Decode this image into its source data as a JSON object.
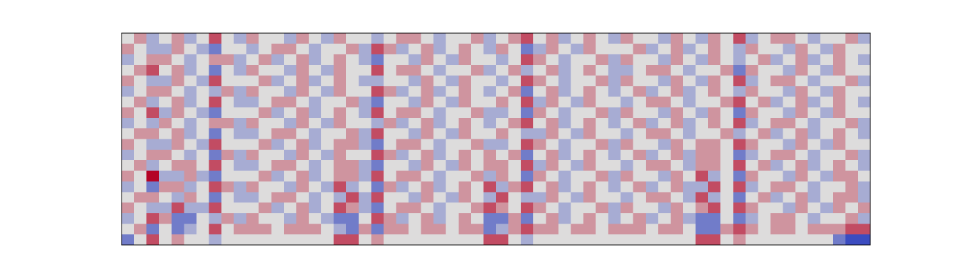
{
  "chart_data": {
    "type": "heatmap",
    "zlim": [
      -3,
      3
    ],
    "colors": [
      "#3b4cc0",
      "#dddcdc",
      "#b40426"
    ],
    "values": [
      [
        0,
        1,
        -1,
        0,
        1,
        -1,
        0,
        2,
        0,
        -1,
        1,
        0,
        0,
        -1,
        1,
        0,
        -1,
        1,
        0,
        0,
        -1,
        0,
        1,
        1,
        0,
        -1,
        0,
        0,
        1,
        -1,
        0,
        1,
        2,
        0,
        1,
        -1,
        0,
        1,
        0,
        -1,
        1,
        0,
        0,
        -1,
        1,
        0,
        -1,
        1,
        0,
        2,
        -1,
        0,
        1,
        1,
        0,
        -1,
        0,
        0,
        1,
        -1
      ],
      [
        1,
        0,
        -1,
        -1,
        1,
        0,
        -1,
        -2,
        0,
        0,
        -1,
        0,
        1,
        1,
        0,
        -1,
        0,
        0,
        1,
        -1,
        2,
        1,
        -1,
        0,
        1,
        -1,
        0,
        1,
        0,
        -1,
        1,
        0,
        -2,
        -1,
        1,
        0,
        -1,
        1,
        0,
        0,
        0,
        1,
        -1,
        0,
        1,
        -1,
        0,
        1,
        0,
        -1,
        1,
        0,
        0,
        -1,
        1,
        0,
        -1,
        1,
        0,
        0
      ],
      [
        -1,
        0,
        1,
        1,
        0,
        -1,
        0,
        1,
        1,
        -1,
        0,
        1,
        -1,
        0,
        1,
        -1,
        0,
        1,
        0,
        -1,
        -2,
        0,
        0,
        -1,
        1,
        0,
        -1,
        1,
        0,
        0,
        -1,
        0,
        2,
        1,
        0,
        -1,
        0,
        0,
        1,
        -1,
        1,
        0,
        0,
        -1,
        1,
        0,
        -1,
        1,
        0,
        -1,
        0,
        1,
        -1,
        0,
        1,
        -1,
        0,
        1,
        0,
        -1
      ],
      [
        0,
        1,
        2,
        0,
        1,
        -1,
        0,
        -2,
        0,
        -1,
        1,
        0,
        0,
        -1,
        1,
        0,
        -1,
        1,
        0,
        0,
        2,
        0,
        1,
        1,
        0,
        -1,
        0,
        0,
        1,
        -1,
        0,
        1,
        -1,
        0,
        1,
        -1,
        0,
        1,
        0,
        -1,
        -1,
        0,
        1,
        1,
        0,
        -1,
        0,
        0,
        1,
        -2,
        1,
        0,
        0,
        -1,
        1,
        0,
        -1,
        1,
        0,
        0
      ],
      [
        1,
        0,
        -1,
        -1,
        1,
        0,
        -1,
        2,
        0,
        0,
        0,
        1,
        -1,
        0,
        1,
        -1,
        0,
        1,
        0,
        -1,
        -1,
        0,
        0,
        -1,
        1,
        0,
        -1,
        1,
        0,
        0,
        -1,
        0,
        2,
        1,
        0,
        -1,
        0,
        0,
        1,
        -1,
        1,
        0,
        0,
        -1,
        1,
        0,
        -1,
        1,
        0,
        2,
        -1,
        0,
        1,
        1,
        0,
        -1,
        0,
        0,
        1,
        -1
      ],
      [
        -1,
        0,
        1,
        1,
        0,
        -1,
        0,
        -1,
        1,
        -1,
        1,
        0,
        0,
        -1,
        1,
        0,
        -1,
        1,
        0,
        0,
        2,
        1,
        -1,
        0,
        1,
        -1,
        0,
        1,
        0,
        -1,
        0,
        1,
        -2,
        0,
        1,
        -1,
        0,
        1,
        0,
        -1,
        0,
        1,
        -1,
        0,
        1,
        -1,
        0,
        1,
        0,
        -1,
        1,
        0,
        0,
        -1,
        1,
        0,
        -1,
        1,
        0,
        0
      ],
      [
        0,
        1,
        -1,
        0,
        1,
        -1,
        0,
        2,
        0,
        -1,
        -1,
        0,
        1,
        1,
        0,
        -1,
        0,
        0,
        1,
        -1,
        -2,
        0,
        0,
        -1,
        1,
        0,
        -1,
        1,
        0,
        0,
        1,
        0,
        2,
        -1,
        1,
        0,
        -1,
        1,
        0,
        0,
        -1,
        0,
        1,
        1,
        0,
        -1,
        0,
        0,
        1,
        2,
        0,
        1,
        -1,
        0,
        1,
        -1,
        0,
        1,
        0,
        -1
      ],
      [
        1,
        0,
        2,
        -1,
        1,
        0,
        -1,
        -2,
        0,
        0,
        0,
        1,
        -1,
        0,
        1,
        -1,
        0,
        1,
        0,
        -1,
        2,
        0,
        1,
        1,
        0,
        -1,
        0,
        0,
        1,
        -1,
        -1,
        0,
        -2,
        1,
        0,
        -1,
        0,
        0,
        1,
        -1,
        1,
        0,
        0,
        -1,
        1,
        0,
        -1,
        1,
        0,
        -2,
        1,
        0,
        0,
        -1,
        1,
        0,
        -1,
        1,
        0,
        0
      ],
      [
        -1,
        0,
        -1,
        1,
        0,
        -1,
        0,
        1,
        1,
        -1,
        1,
        0,
        0,
        -1,
        1,
        0,
        -1,
        1,
        0,
        0,
        -1,
        1,
        -1,
        0,
        1,
        -1,
        0,
        1,
        0,
        -1,
        0,
        1,
        2,
        0,
        1,
        -1,
        0,
        1,
        0,
        -1,
        0,
        1,
        -1,
        0,
        1,
        -1,
        0,
        1,
        0,
        2,
        -1,
        0,
        1,
        1,
        0,
        -1,
        0,
        0,
        1,
        -1
      ],
      [
        0,
        1,
        1,
        0,
        1,
        -1,
        0,
        -2,
        0,
        -1,
        -1,
        0,
        1,
        1,
        0,
        -1,
        0,
        0,
        1,
        -1,
        2,
        0,
        0,
        -1,
        1,
        0,
        -1,
        1,
        0,
        0,
        1,
        0,
        -1,
        -1,
        1,
        0,
        -1,
        1,
        0,
        0,
        -1,
        0,
        1,
        1,
        0,
        -1,
        0,
        0,
        1,
        -1,
        0,
        1,
        -1,
        0,
        1,
        -1,
        0,
        1,
        0,
        -1
      ],
      [
        1,
        0,
        -1,
        -1,
        1,
        0,
        -1,
        2,
        0,
        0,
        0,
        1,
        -1,
        0,
        1,
        -1,
        0,
        1,
        1,
        -1,
        -2,
        0,
        1,
        1,
        0,
        -1,
        0,
        0,
        1,
        -1,
        -1,
        0,
        2,
        1,
        0,
        -1,
        0,
        0,
        1,
        -1,
        1,
        0,
        0,
        -1,
        1,
        0,
        1,
        1,
        0,
        2,
        1,
        0,
        0,
        -1,
        1,
        0,
        -1,
        1,
        0,
        0
      ],
      [
        -1,
        0,
        1,
        1,
        0,
        -1,
        0,
        -2,
        1,
        -1,
        1,
        0,
        0,
        -1,
        1,
        0,
        -1,
        1,
        0,
        0,
        2,
        1,
        -1,
        0,
        1,
        -1,
        0,
        1,
        0,
        1,
        0,
        1,
        -2,
        0,
        1,
        -1,
        0,
        1,
        0,
        -1,
        0,
        1,
        -1,
        0,
        1,
        -1,
        1,
        1,
        0,
        -2,
        -1,
        0,
        1,
        1,
        0,
        -1,
        0,
        0,
        1,
        -1
      ],
      [
        0,
        1,
        -1,
        0,
        1,
        1,
        0,
        2,
        0,
        -1,
        -1,
        0,
        1,
        1,
        0,
        -1,
        0,
        1,
        1,
        -1,
        -2,
        0,
        0,
        -1,
        1,
        0,
        -1,
        1,
        0,
        1,
        1,
        0,
        2,
        -1,
        1,
        0,
        -1,
        1,
        0,
        0,
        -1,
        0,
        1,
        1,
        0,
        -1,
        1,
        1,
        0,
        2,
        0,
        1,
        -1,
        0,
        1,
        -1,
        0,
        1,
        0,
        -1
      ],
      [
        1,
        0,
        3,
        -1,
        -1,
        1,
        -1,
        -2,
        0,
        0,
        0,
        1,
        -1,
        0,
        1,
        -1,
        0,
        1,
        1,
        -1,
        2,
        0,
        1,
        1,
        0,
        -1,
        0,
        0,
        1,
        -1,
        1,
        0,
        -2,
        1,
        0,
        -1,
        0,
        0,
        1,
        -1,
        1,
        0,
        0,
        -1,
        1,
        0,
        2,
        -1,
        0,
        -2,
        1,
        0,
        0,
        -1,
        1,
        0,
        -1,
        1,
        1,
        0
      ],
      [
        -1,
        0,
        -2,
        1,
        1,
        -1,
        0,
        2,
        1,
        -1,
        1,
        0,
        0,
        -1,
        1,
        0,
        -1,
        2,
        -1,
        0,
        -2,
        1,
        -1,
        0,
        1,
        -1,
        0,
        1,
        0,
        2,
        -1,
        1,
        2,
        0,
        1,
        -1,
        0,
        1,
        0,
        -1,
        0,
        1,
        -1,
        0,
        1,
        -1,
        -1,
        2,
        0,
        2,
        -1,
        0,
        1,
        1,
        0,
        -1,
        0,
        0,
        1,
        -1
      ],
      [
        0,
        1,
        1,
        0,
        -1,
        1,
        0,
        -2,
        0,
        -1,
        -1,
        0,
        1,
        1,
        0,
        -1,
        0,
        -1,
        2,
        -1,
        2,
        0,
        0,
        -1,
        1,
        0,
        -1,
        1,
        0,
        -1,
        2,
        0,
        -1,
        -1,
        1,
        0,
        -1,
        1,
        0,
        0,
        -1,
        0,
        1,
        1,
        0,
        -1,
        2,
        -1,
        0,
        -2,
        0,
        1,
        -1,
        0,
        1,
        -1,
        0,
        1,
        1,
        -1
      ],
      [
        1,
        0,
        -1,
        -1,
        2,
        -1,
        -1,
        2,
        0,
        0,
        0,
        1,
        -1,
        0,
        1,
        -1,
        0,
        2,
        1,
        -1,
        -2,
        0,
        1,
        1,
        0,
        -1,
        0,
        0,
        1,
        2,
        1,
        0,
        2,
        1,
        0,
        -1,
        0,
        0,
        1,
        -1,
        1,
        0,
        0,
        -1,
        1,
        0,
        1,
        2,
        0,
        2,
        1,
        0,
        0,
        -1,
        1,
        0,
        -1,
        1,
        0,
        1
      ],
      [
        -1,
        0,
        2,
        1,
        -2,
        -2,
        0,
        -1,
        1,
        -1,
        1,
        0,
        0,
        -1,
        1,
        0,
        -1,
        -2,
        -2,
        0,
        2,
        1,
        -1,
        0,
        1,
        -1,
        0,
        1,
        0,
        -2,
        -2,
        1,
        -2,
        0,
        1,
        -1,
        0,
        1,
        0,
        -1,
        0,
        1,
        -1,
        0,
        1,
        -1,
        -2,
        -2,
        0,
        -2,
        -1,
        0,
        1,
        1,
        0,
        -1,
        0,
        0,
        1,
        -1
      ],
      [
        0,
        1,
        -2,
        0,
        -2,
        -1,
        0,
        2,
        0,
        1,
        1,
        1,
        0,
        1,
        1,
        1,
        0,
        -1,
        -2,
        1,
        -2,
        1,
        1,
        0,
        1,
        1,
        0,
        1,
        1,
        -2,
        -1,
        1,
        2,
        1,
        1,
        0,
        1,
        1,
        0,
        1,
        1,
        1,
        0,
        1,
        1,
        0,
        -2,
        -2,
        1,
        2,
        1,
        0,
        1,
        1,
        0,
        1,
        1,
        1,
        2,
        2
      ],
      [
        -2,
        0,
        2,
        0,
        1,
        0,
        0,
        -1,
        0,
        0,
        0,
        0,
        0,
        0,
        0,
        0,
        0,
        2,
        2,
        0,
        1,
        0,
        0,
        0,
        0,
        0,
        0,
        0,
        0,
        2,
        2,
        0,
        -1,
        0,
        0,
        0,
        0,
        0,
        0,
        0,
        0,
        0,
        0,
        0,
        0,
        0,
        2,
        2,
        0,
        1,
        0,
        0,
        0,
        0,
        0,
        0,
        0,
        -2,
        -3,
        -3
      ]
    ]
  }
}
